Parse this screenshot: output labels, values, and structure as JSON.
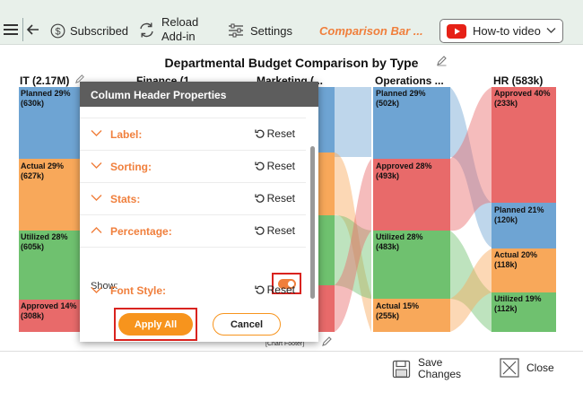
{
  "toolbar": {
    "subscribed_label": "Subscribed",
    "reload_label_1": "Reload",
    "reload_label_2": "Add-in",
    "settings_label": "Settings",
    "chart_name": "Comparison Bar ...",
    "howto_label": "How-to video"
  },
  "chart": {
    "title": "Departmental Budget Comparison by Type",
    "footer": "[Chart Footer]",
    "colors": {
      "planned": "#6ea4d3",
      "actual": "#f8a85a",
      "utilized": "#6fc16f",
      "approved": "#e86a6a"
    },
    "columns": [
      {
        "header": "IT (2.17M)",
        "segments": [
          {
            "label": "Planned 29%",
            "value": "(630k)"
          },
          {
            "label": "Actual 29%",
            "value": "(627k)"
          },
          {
            "label": "Utilized 28%",
            "value": "(605k)"
          },
          {
            "label": "Approved 14%",
            "value": "(308k)"
          }
        ]
      },
      {
        "header": "Finance (1...",
        "segments": []
      },
      {
        "header": "Marketing (...",
        "segments": []
      },
      {
        "header": "Operations ...",
        "segments": [
          {
            "label": "Planned 29%",
            "value": "(502k)"
          },
          {
            "label": "Approved 28%",
            "value": "(493k)"
          },
          {
            "label": "Utilized 28%",
            "value": "(483k)"
          },
          {
            "label": "Actual 15%",
            "value": "(255k)"
          }
        ]
      },
      {
        "header": "HR (583k)",
        "segments": [
          {
            "label": "Approved 40%",
            "value": "(233k)"
          },
          {
            "label": "Planned 21%",
            "value": "(120k)"
          },
          {
            "label": "Actual 20%",
            "value": "(118k)"
          },
          {
            "label": "Utilized 19%",
            "value": "(112k)"
          }
        ]
      }
    ]
  },
  "dialog": {
    "title": "Column Header Properties",
    "sections": [
      {
        "label": "Label:",
        "reset": "Reset"
      },
      {
        "label": "Sorting:",
        "reset": "Reset"
      },
      {
        "label": "Stats:",
        "reset": "Reset"
      },
      {
        "label": "Percentage:",
        "reset": "Reset"
      },
      {
        "label": "Font Style:",
        "reset": "Reset"
      }
    ],
    "show_label": "Show:",
    "show_enabled": true,
    "apply_label": "Apply All",
    "cancel_label": "Cancel"
  },
  "footer": {
    "save_label_1": "Save",
    "save_label_2": "Changes",
    "close_label": "Close"
  }
}
